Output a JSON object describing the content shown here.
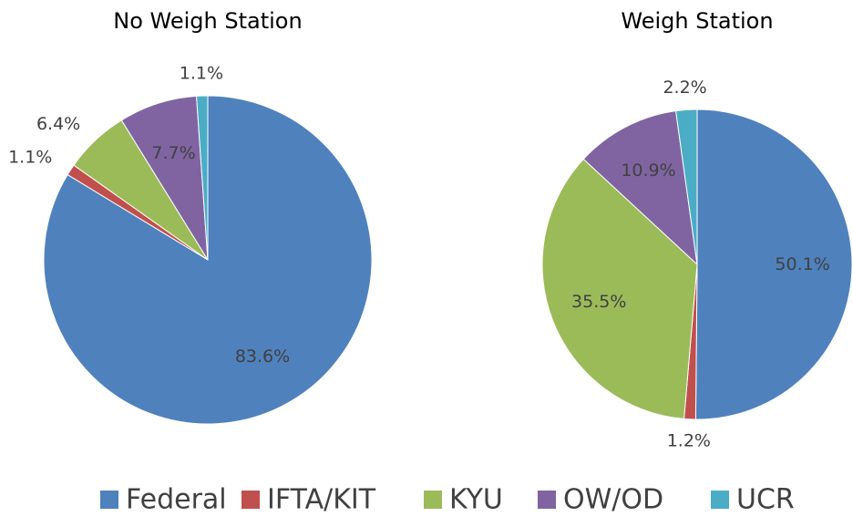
{
  "chart_data": [
    {
      "type": "pie",
      "title": "No Weigh Station",
      "values": [
        83.6,
        1.1,
        6.4,
        7.7,
        1.1
      ],
      "value_labels": [
        "83.6%",
        "1.1%",
        "6.4%",
        "7.7%",
        "1.1%"
      ]
    },
    {
      "type": "pie",
      "title": "Weigh Station",
      "values": [
        50.1,
        1.2,
        35.5,
        10.9,
        2.2
      ],
      "value_labels": [
        "50.1%",
        "1.2%",
        "35.5%",
        "10.9%",
        "2.2%"
      ]
    }
  ],
  "legend": {
    "categories": [
      "Federal",
      "IFTA/KIT",
      "KYU",
      "OW/OD",
      "UCR"
    ],
    "colors": [
      "#4f81bd",
      "#c0504d",
      "#9bbb59",
      "#8064a2",
      "#4bacc6"
    ]
  }
}
